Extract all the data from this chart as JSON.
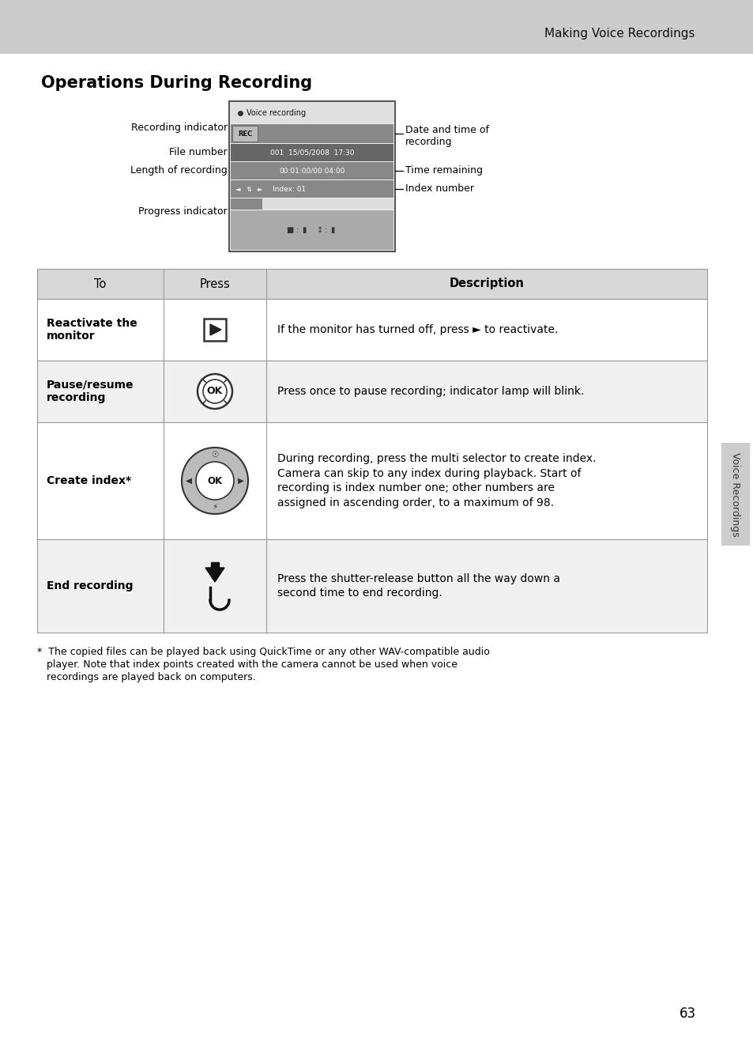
{
  "page_bg": "#ffffff",
  "header_bg": "#cccccc",
  "header_text": "Making Voice Recordings",
  "title": "Operations During Recording",
  "page_number": "63",
  "sidebar_text": "Voice Recordings",
  "table_header_bg": "#d8d8d8",
  "footnote_line1": "*  The copied files can be played back using QuickTime or any other WAV-compatible audio",
  "footnote_line2": "   player. Note that index points created with the camera cannot be used when voice",
  "footnote_line3": "   recordings are played back on computers."
}
